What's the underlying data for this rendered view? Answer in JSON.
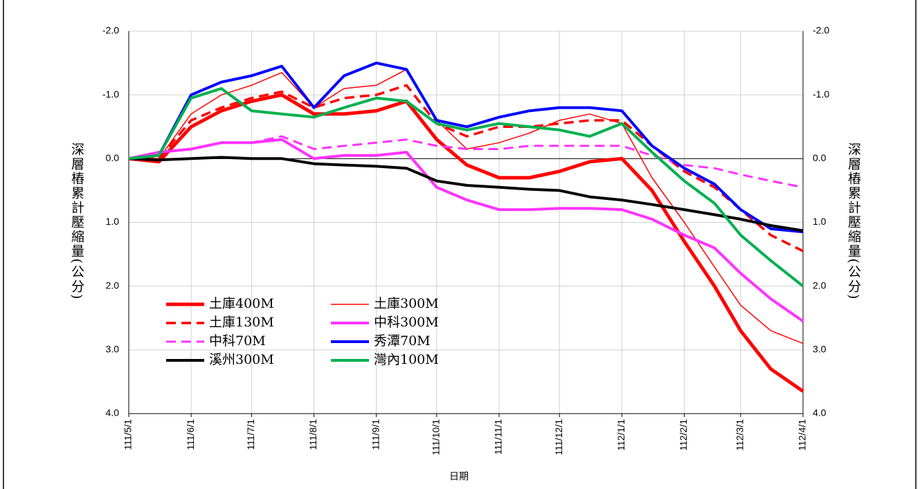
{
  "chart_data": {
    "type": "line",
    "xlabel": "日期",
    "ylabel": "深層樁累計壓縮量(公分)",
    "y2label": "深層樁累計壓縮量(公分)",
    "y_inverted": true,
    "grid": true,
    "legend": "lower left",
    "xlim": [
      "111/5/1",
      "112/4/1"
    ],
    "xticks": [
      "111/5/1",
      "111/6/1",
      "111/7/1",
      "111/8/1",
      "111/9/1",
      "111/10/1",
      "111/11/1",
      "111/12/1",
      "112/1/1",
      "112/2/1",
      "112/3/1",
      "112/4/1"
    ],
    "ylim": [
      -2,
      4
    ],
    "yticks": [
      {
        "value": -2,
        "label": "-2.0"
      },
      {
        "value": -1,
        "label": "-1.0"
      },
      {
        "value": 0,
        "label": "0.0"
      },
      {
        "value": 1,
        "label": "1.0"
      },
      {
        "value": 2,
        "label": "2.0"
      },
      {
        "value": 3,
        "label": "3.0"
      },
      {
        "value": 4,
        "label": "4.0"
      }
    ],
    "y2lim": [
      -2,
      4
    ],
    "y2ticks": [
      {
        "value": -2,
        "label": "-2.0"
      },
      {
        "value": -1,
        "label": "-1.0"
      },
      {
        "value": 0,
        "label": "0.0"
      },
      {
        "value": 1,
        "label": "1.0"
      },
      {
        "value": 2,
        "label": "2.0"
      },
      {
        "value": 3,
        "label": "3.0"
      },
      {
        "value": 4,
        "label": "4.0"
      }
    ],
    "x": [
      "111/5/1",
      "111/5/16",
      "111/6/1",
      "111/6/16",
      "111/7/1",
      "111/7/16",
      "111/8/1",
      "111/8/16",
      "111/9/1",
      "111/9/16",
      "111/10/1",
      "111/10/16",
      "111/11/1",
      "111/11/16",
      "111/12/1",
      "111/12/16",
      "112/1/1",
      "112/1/16",
      "112/2/1",
      "112/2/16",
      "112/3/1",
      "112/3/16",
      "112/4/1"
    ],
    "series": [
      {
        "name": "土庫400M",
        "color": "#ff0000",
        "width": 5,
        "dash": false,
        "values": [
          0,
          0.05,
          -0.5,
          -0.75,
          -0.9,
          -1.0,
          -0.7,
          -0.7,
          -0.75,
          -0.9,
          -0.3,
          0.1,
          0.3,
          0.3,
          0.2,
          0.05,
          0,
          0.5,
          1.3,
          2.0,
          2.7,
          3.3,
          3.65
        ]
      },
      {
        "name": "土庫300M",
        "color": "#ff0000",
        "width": 1.5,
        "dash": false,
        "values": [
          0,
          0,
          -0.7,
          -1.0,
          -1.15,
          -1.35,
          -0.8,
          -1.1,
          -1.15,
          -1.4,
          -0.6,
          -0.15,
          -0.25,
          -0.4,
          -0.6,
          -0.7,
          -0.55,
          0.3,
          1.0,
          1.7,
          2.3,
          2.7,
          2.9
        ]
      },
      {
        "name": "土庫130M",
        "color": "#ff0000",
        "width": 3.5,
        "dash": true,
        "values": [
          0,
          0,
          -0.6,
          -0.8,
          -0.95,
          -1.05,
          -0.8,
          -0.95,
          -1.0,
          -1.15,
          -0.55,
          -0.35,
          -0.5,
          -0.5,
          -0.55,
          -0.6,
          -0.6,
          -0.2,
          0.2,
          0.45,
          0.8,
          1.2,
          1.45
        ]
      },
      {
        "name": "中科300M",
        "color": "#ff33ff",
        "width": 4,
        "dash": false,
        "values": [
          0,
          -0.1,
          -0.15,
          -0.25,
          -0.25,
          -0.3,
          0,
          -0.05,
          -0.05,
          -0.1,
          0.45,
          0.65,
          0.8,
          0.8,
          0.78,
          0.78,
          0.8,
          0.95,
          1.2,
          1.4,
          1.8,
          2.2,
          2.55
        ]
      },
      {
        "name": "中科70M",
        "color": "#ff33ff",
        "width": 3,
        "dash": true,
        "values": [
          0,
          -0.1,
          -0.15,
          -0.25,
          -0.25,
          -0.35,
          -0.15,
          -0.2,
          -0.25,
          -0.3,
          -0.2,
          -0.15,
          -0.15,
          -0.2,
          -0.2,
          -0.2,
          -0.2,
          -0.05,
          0.1,
          0.15,
          0.25,
          0.35,
          0.45
        ]
      },
      {
        "name": "秀潭70M",
        "color": "#0000ff",
        "width": 4,
        "dash": false,
        "values": [
          0,
          -0.05,
          -1.0,
          -1.2,
          -1.3,
          -1.45,
          -0.8,
          -1.3,
          -1.5,
          -1.4,
          -0.6,
          -0.5,
          -0.65,
          -0.75,
          -0.8,
          -0.8,
          -0.75,
          -0.2,
          0.15,
          0.4,
          0.8,
          1.1,
          1.15
        ]
      },
      {
        "name": "溪州300M",
        "color": "#000000",
        "width": 4,
        "dash": false,
        "values": [
          0,
          0.02,
          0,
          -0.02,
          0,
          0,
          0.08,
          0.1,
          0.12,
          0.15,
          0.35,
          0.42,
          0.45,
          0.48,
          0.5,
          0.6,
          0.65,
          0.72,
          0.8,
          0.88,
          0.95,
          1.05,
          1.13
        ]
      },
      {
        "name": "灣內100M",
        "color": "#00b050",
        "width": 4,
        "dash": false,
        "values": [
          0,
          -0.05,
          -0.95,
          -1.1,
          -0.75,
          -0.7,
          -0.65,
          -0.8,
          -0.95,
          -0.9,
          -0.55,
          -0.45,
          -0.55,
          -0.5,
          -0.45,
          -0.35,
          -0.55,
          -0.1,
          0.35,
          0.7,
          1.2,
          1.6,
          2.0
        ]
      }
    ]
  }
}
